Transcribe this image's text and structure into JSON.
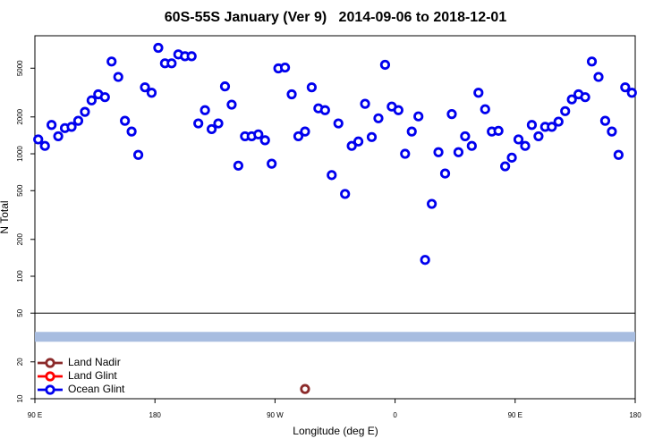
{
  "chart_data": {
    "type": "scatter",
    "title": "60S-55S January (Ver 9)   2014-09-06 to 2018-12-01",
    "x_label": "Longitude (deg E)",
    "y_label": "N Total",
    "log_y": true,
    "legend": "bottomleft",
    "xlim": [
      90,
      540
    ],
    "xticks": [
      {
        "value": 90,
        "label": "90 E"
      },
      {
        "value": 180,
        "label": "180"
      },
      {
        "value": 270,
        "label": "90 W"
      },
      {
        "value": 360,
        "label": "0"
      },
      {
        "value": 450,
        "label": "90 E"
      },
      {
        "value": 540,
        "label": "180"
      }
    ],
    "ylim": [
      10,
      9200
    ],
    "yticks": [
      10,
      20,
      50,
      100,
      200,
      500,
      1000,
      2000,
      5000
    ],
    "hlines": [
      50
    ],
    "band": {
      "value": 32,
      "color": "#a8bde0"
    },
    "series": [
      {
        "name": "Land Nadir",
        "color": "#8b2a2a",
        "x": [
          292.5
        ],
        "values": [
          12
        ]
      },
      {
        "name": "Land Glint",
        "color": "#ff0000",
        "x": [],
        "values": []
      },
      {
        "name": "Ocean Glint",
        "color": "#0000ee",
        "x": [
          92.5,
          97.5,
          102.5,
          107.5,
          112.5,
          117.5,
          122.5,
          127.5,
          132.5,
          137.5,
          142.5,
          147.5,
          152.5,
          157.5,
          162.5,
          167.5,
          172.5,
          177.5,
          182.5,
          187.5,
          192.5,
          197.5,
          202.5,
          207.5,
          212.5,
          217.5,
          222.5,
          227.5,
          232.5,
          237.5,
          242.5,
          247.5,
          252.5,
          257.5,
          262.5,
          267.5,
          272.5,
          277.5,
          282.5,
          287.5,
          292.5,
          297.5,
          302.5,
          307.5,
          312.5,
          317.5,
          322.5,
          327.5,
          332.5,
          337.5,
          342.5,
          347.5,
          352.5,
          357.5,
          362.5,
          367.5,
          372.5,
          377.5,
          382.5,
          387.5,
          392.5,
          397.5,
          402.5,
          407.5,
          412.5,
          417.5,
          422.5,
          427.5,
          432.5,
          437.5,
          442.5,
          447.5,
          452.5,
          457.5,
          462.5,
          467.5,
          472.5,
          477.5,
          482.5,
          487.5,
          492.5,
          497.5,
          502.5,
          507.5,
          512.5,
          517.5,
          522.5,
          527.5,
          532.5,
          537.5
        ],
        "values": [
          1310,
          1160,
          1720,
          1390,
          1620,
          1660,
          1860,
          2200,
          2730,
          3060,
          2900,
          5670,
          4240,
          1860,
          1520,
          980,
          3490,
          3150,
          7330,
          5480,
          5480,
          6480,
          6260,
          6260,
          1770,
          2270,
          1590,
          1770,
          3550,
          2520,
          800,
          1390,
          1390,
          1440,
          1290,
          830,
          4980,
          5060,
          3060,
          1390,
          1520,
          3490,
          2350,
          2270,
          670,
          1770,
          470,
          1160,
          1260,
          2560,
          1370,
          1950,
          5330,
          2430,
          2270,
          1000,
          1520,
          2020,
          136,
          390,
          1030,
          690,
          2110,
          1030,
          1390,
          1160,
          3150,
          2310,
          1520,
          1540,
          790,
          930,
          1310,
          1160,
          1720,
          1390,
          1660,
          1660,
          1830,
          2230,
          2780,
          3060,
          2900,
          5670,
          4240,
          1860,
          1520,
          980,
          3490,
          3150
        ]
      }
    ]
  }
}
